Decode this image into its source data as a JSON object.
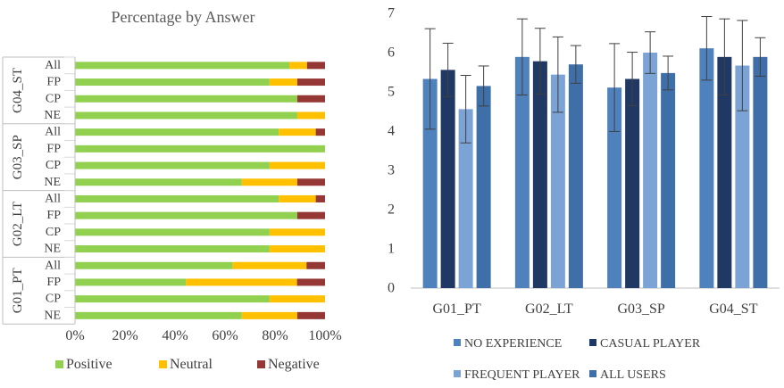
{
  "chart_data": [
    {
      "type": "bar",
      "orientation": "horizontal",
      "stacked": "percent",
      "title": "Percentage by Answer",
      "groups": [
        {
          "label": "G04_ST",
          "rows": [
            {
              "label": "All",
              "positive": 85.7,
              "neutral": 7.1,
              "negative": 7.2
            },
            {
              "label": "FP",
              "positive": 77.8,
              "neutral": 11.1,
              "negative": 11.1
            },
            {
              "label": "CP",
              "positive": 88.9,
              "neutral": 0,
              "negative": 11.1
            },
            {
              "label": "NE",
              "positive": 88.9,
              "neutral": 11.1,
              "negative": 0
            }
          ]
        },
        {
          "label": "G03_SP",
          "rows": [
            {
              "label": "All",
              "positive": 81.5,
              "neutral": 14.8,
              "negative": 3.7
            },
            {
              "label": "FP",
              "positive": 100,
              "neutral": 0,
              "negative": 0
            },
            {
              "label": "CP",
              "positive": 77.8,
              "neutral": 22.2,
              "negative": 0
            },
            {
              "label": "NE",
              "positive": 66.7,
              "neutral": 22.2,
              "negative": 11.1
            }
          ]
        },
        {
          "label": "G02_LT",
          "rows": [
            {
              "label": "All",
              "positive": 81.5,
              "neutral": 14.8,
              "negative": 3.7
            },
            {
              "label": "FP",
              "positive": 88.9,
              "neutral": 0,
              "negative": 11.1
            },
            {
              "label": "CP",
              "positive": 77.8,
              "neutral": 22.2,
              "negative": 0
            },
            {
              "label": "NE",
              "positive": 77.8,
              "neutral": 22.2,
              "negative": 0
            }
          ]
        },
        {
          "label": "G01_PT",
          "rows": [
            {
              "label": "All",
              "positive": 63,
              "neutral": 29.6,
              "negative": 7.4
            },
            {
              "label": "FP",
              "positive": 44.4,
              "neutral": 44.4,
              "negative": 11.2
            },
            {
              "label": "CP",
              "positive": 77.8,
              "neutral": 22.2,
              "negative": 0
            },
            {
              "label": "NE",
              "positive": 66.7,
              "neutral": 22.2,
              "negative": 11.1
            }
          ]
        }
      ],
      "x_ticks": [
        "0%",
        "20%",
        "40%",
        "60%",
        "80%",
        "100%"
      ],
      "xlim": [
        0,
        100
      ],
      "legend": [
        {
          "name": "Positive",
          "color": "#92d050"
        },
        {
          "name": "Neutral",
          "color": "#ffc000"
        },
        {
          "name": "Negative",
          "color": "#953735"
        }
      ],
      "legend_position": "bottom",
      "grid": false
    },
    {
      "type": "bar",
      "title": "",
      "categories": [
        "G01_PT",
        "G02_LT",
        "G03_SP",
        "G04_ST"
      ],
      "ylim": [
        0,
        7
      ],
      "y_ticks": [
        "0",
        "1",
        "2",
        "3",
        "4",
        "5",
        "6",
        "7"
      ],
      "error_bars": true,
      "series": [
        {
          "name": "NO EXPERIENCE",
          "color": "#4f81bd",
          "values": [
            5.33,
            5.89,
            5.11,
            6.11
          ],
          "errors": [
            1.28,
            0.97,
            1.12,
            0.81
          ]
        },
        {
          "name": "CASUAL PLAYER",
          "color": "#1f3864",
          "values": [
            5.56,
            5.78,
            5.33,
            5.89
          ],
          "errors": [
            0.68,
            0.84,
            0.68,
            0.97
          ]
        },
        {
          "name": "FREQUENT PLAYER",
          "color": "#7ba3d6",
          "values": [
            4.56,
            5.44,
            6.0,
            5.67
          ],
          "errors": [
            0.86,
            0.96,
            0.53,
            1.15
          ]
        },
        {
          "name": "ALL USERS",
          "color": "#3f6fa8",
          "values": [
            5.15,
            5.7,
            5.48,
            5.89
          ],
          "errors": [
            0.51,
            0.48,
            0.43,
            0.49
          ]
        }
      ],
      "legend_position": "bottom",
      "grid": false
    }
  ]
}
